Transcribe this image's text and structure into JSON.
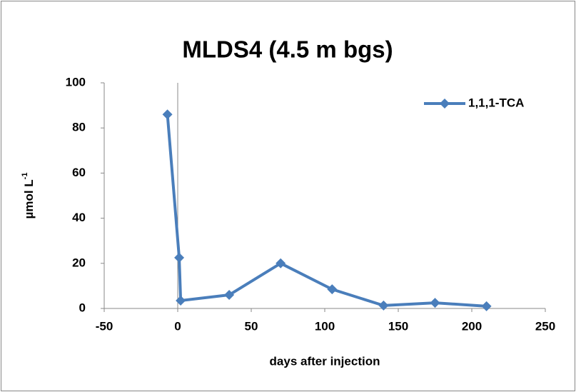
{
  "chart_data": {
    "type": "line",
    "title": "MLDS4 (4.5 m bgs)",
    "x_label": "days after injection",
    "y_label": {
      "text": "µmol L",
      "superscript": "-1"
    },
    "x": [
      -7,
      1,
      2,
      35,
      70,
      105,
      140,
      175,
      210
    ],
    "series": [
      {
        "name": "1,1,1-TCA",
        "color": "#4a7ebb",
        "values": [
          86,
          22.5,
          3.5,
          6,
          20,
          8.5,
          1.3,
          2.5,
          1
        ]
      }
    ],
    "xlim": [
      -50,
      250
    ],
    "xticks": [
      -50,
      0,
      50,
      100,
      150,
      200,
      250
    ],
    "ylim": [
      0,
      100
    ],
    "yticks": [
      0,
      20,
      40,
      60,
      80,
      100
    ],
    "legend": "upper right",
    "grid": false
  }
}
